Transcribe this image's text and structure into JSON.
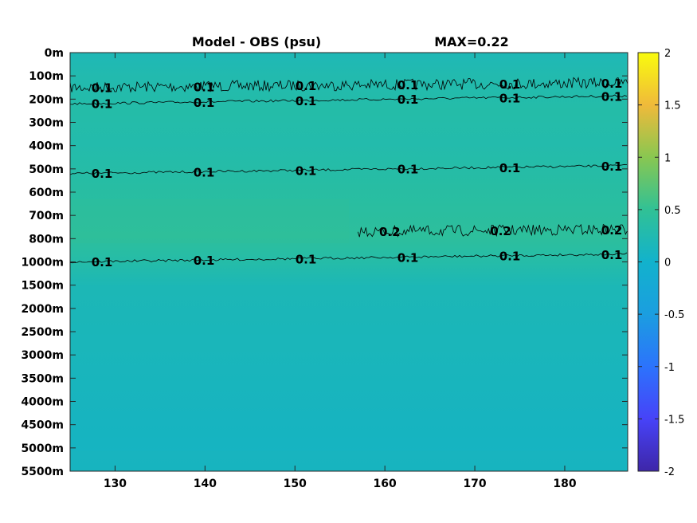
{
  "chart_data": {
    "type": "heatmap",
    "title": "Model - OBS (psu)",
    "annotation": "MAX=0.22",
    "xlabel": "",
    "ylabel": "",
    "xlim": [
      125,
      187
    ],
    "x_ticks": [
      130,
      140,
      150,
      160,
      170,
      180
    ],
    "y_ticks": [
      "0m",
      "100m",
      "200m",
      "300m",
      "400m",
      "500m",
      "600m",
      "700m",
      "800m",
      "1000m",
      "1500m",
      "2000m",
      "2500m",
      "3000m",
      "3500m",
      "4000m",
      "4500m",
      "5000m",
      "5500m"
    ],
    "colorbar": {
      "colormap": "parula",
      "clim": [
        -2,
        2
      ],
      "ticks": [
        "2",
        "1.5",
        "1",
        "0.5",
        "0",
        "-0.5",
        "-1",
        "-1.5",
        "-2"
      ]
    },
    "contours": [
      {
        "level": 0.1,
        "label": "0.1",
        "depth": "150m",
        "noisy": true,
        "x_range": [
          125,
          187
        ]
      },
      {
        "level": 0.1,
        "label": "0.1",
        "depth": "220m",
        "noisy": false,
        "x_range": [
          125,
          187
        ]
      },
      {
        "level": 0.1,
        "label": "0.1",
        "depth": "520m",
        "noisy": false,
        "x_range": [
          125,
          187
        ]
      },
      {
        "level": 0.2,
        "label": "0.2",
        "depth": "770m",
        "noisy": true,
        "x_range": [
          157,
          187
        ]
      },
      {
        "level": 0.1,
        "label": "0.1",
        "depth": "1000m",
        "noisy": false,
        "x_range": [
          125,
          187
        ]
      }
    ],
    "field_description": "values near 0 everywhere; slightly positive (0.05-0.2) between 0m and 1000m, near 0 below 1000m"
  }
}
